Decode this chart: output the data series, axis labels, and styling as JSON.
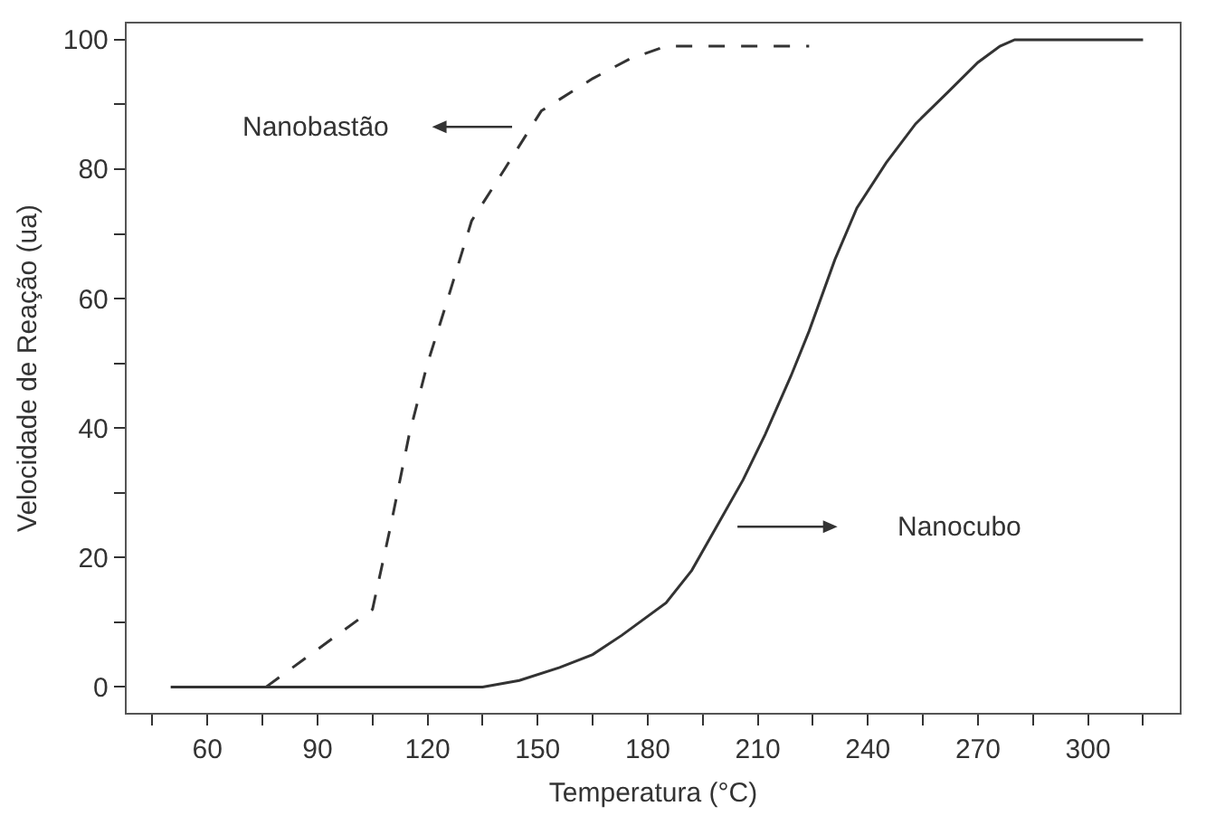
{
  "chart_data": {
    "type": "line",
    "xlabel": "Temperatura (°C)",
    "ylabel": "Velocidade de Reação (ua)",
    "xlim": [
      38,
      325
    ],
    "xticks": [
      {
        "value": 45,
        "label": null
      },
      60,
      {
        "value": 75,
        "label": null
      },
      90,
      {
        "value": 105,
        "label": null
      },
      120,
      {
        "value": 135,
        "label": null
      },
      150,
      {
        "value": 165,
        "label": null
      },
      180,
      {
        "value": 195,
        "label": null
      },
      210,
      {
        "value": 225,
        "label": null
      },
      240,
      {
        "value": 255,
        "label": null
      },
      270,
      {
        "value": 285,
        "label": null
      },
      300,
      {
        "value": 315,
        "label": null
      }
    ],
    "ylim": [
      -4,
      102.5
    ],
    "yticks": [
      0,
      {
        "value": 10,
        "label": null
      },
      20,
      {
        "value": 30,
        "label": null
      },
      40,
      {
        "value": 50,
        "label": null
      },
      60,
      {
        "value": 70,
        "label": null
      },
      80,
      {
        "value": 90,
        "label": null
      },
      100
    ],
    "grid": false,
    "marker": "none",
    "series": [
      {
        "color": "#333333",
        "line_style": "dashed",
        "x": [
          76,
          105,
          110,
          115,
          120,
          125,
          132,
          141,
          151,
          165,
          175,
          185,
          224
        ],
        "values": [
          0,
          12,
          25,
          39,
          50,
          59,
          72,
          80,
          89,
          94,
          97,
          99,
          99
        ]
      },
      {
        "color": "#333333",
        "line_style": "solid",
        "x": [
          50,
          135,
          145,
          156,
          165,
          173,
          185,
          192,
          199,
          206,
          212,
          219,
          224,
          231,
          237,
          245,
          253,
          262,
          270,
          276,
          280,
          315
        ],
        "values": [
          0,
          0,
          1,
          3,
          5,
          8,
          13,
          18,
          25,
          32,
          39,
          48,
          55,
          66,
          74,
          81,
          87,
          92,
          96.5,
          99,
          100,
          100
        ]
      }
    ],
    "annotations": [
      "Nanobastão",
      "Nanocubo"
    ]
  }
}
